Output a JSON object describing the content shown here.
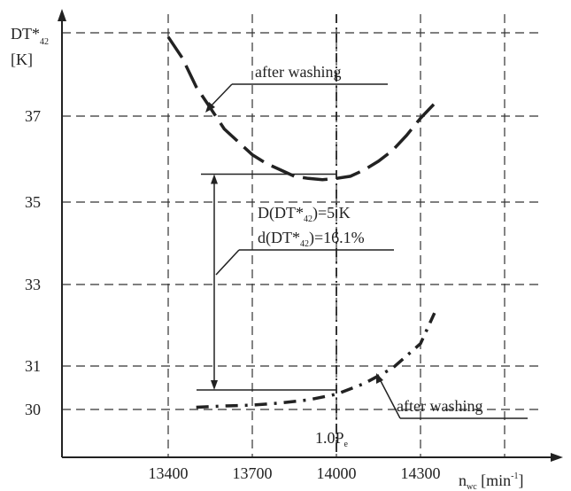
{
  "chart_data": {
    "type": "line",
    "title": "",
    "xlabel": {
      "main": "n",
      "sub": "wc",
      "unit": " [min",
      "sup": "-1",
      "end": "]"
    },
    "ylabel": {
      "line1_main": "DT*",
      "line1_sub": "42",
      "line2": "[K]"
    },
    "x_ticks": [
      13400,
      13700,
      14000,
      14300
    ],
    "x_tick_labels": [
      "13400",
      "13700",
      "14000",
      "14300"
    ],
    "x_grid": [
      13400,
      13700,
      14000,
      14300,
      14600
    ],
    "y_ticks": [
      30,
      31,
      33,
      35,
      37
    ],
    "y_tick_labels": [
      "30",
      "31",
      "33",
      "35",
      "37"
    ],
    "y_grid": [
      30,
      31,
      33,
      35,
      37,
      39
    ],
    "xlim": [
      13000,
      14750
    ],
    "ylim": [
      29,
      39.6
    ],
    "grid": true,
    "series": [
      {
        "style": "dashed",
        "x": [
          13400,
          13450,
          13500,
          13550,
          13600,
          13650,
          13700,
          13750,
          13800,
          13850,
          13900,
          13950,
          14000,
          14050,
          14100,
          14150,
          14200,
          14250,
          14300,
          14350
        ],
        "y": [
          38.9,
          38.4,
          37.7,
          37.2,
          36.7,
          36.4,
          36.1,
          35.9,
          35.75,
          35.6,
          35.55,
          35.52,
          35.55,
          35.6,
          35.75,
          35.95,
          36.2,
          36.55,
          36.95,
          37.3
        ]
      },
      {
        "style": "dash-dot",
        "x": [
          13500,
          13600,
          13700,
          13800,
          13900,
          14000,
          14100,
          14200,
          14300,
          14350
        ],
        "y": [
          30.05,
          30.08,
          30.1,
          30.15,
          30.22,
          30.35,
          30.6,
          30.95,
          31.55,
          32.3
        ]
      }
    ],
    "reference_lines": {
      "x": 14000,
      "x_label_main": "1.0P",
      "x_label_sub": "e",
      "upper_y": 35.65,
      "lower_y": 30.45
    },
    "annotations": {
      "after_washing_top": "after washing",
      "after_washing_bottom": "after washing",
      "delta_abs": {
        "a": "D(DT*",
        "sub": "42",
        "b": ")=5 K"
      },
      "delta_rel": {
        "a": "d(DT*",
        "sub": "42",
        "b": ")=16.1%"
      }
    }
  }
}
